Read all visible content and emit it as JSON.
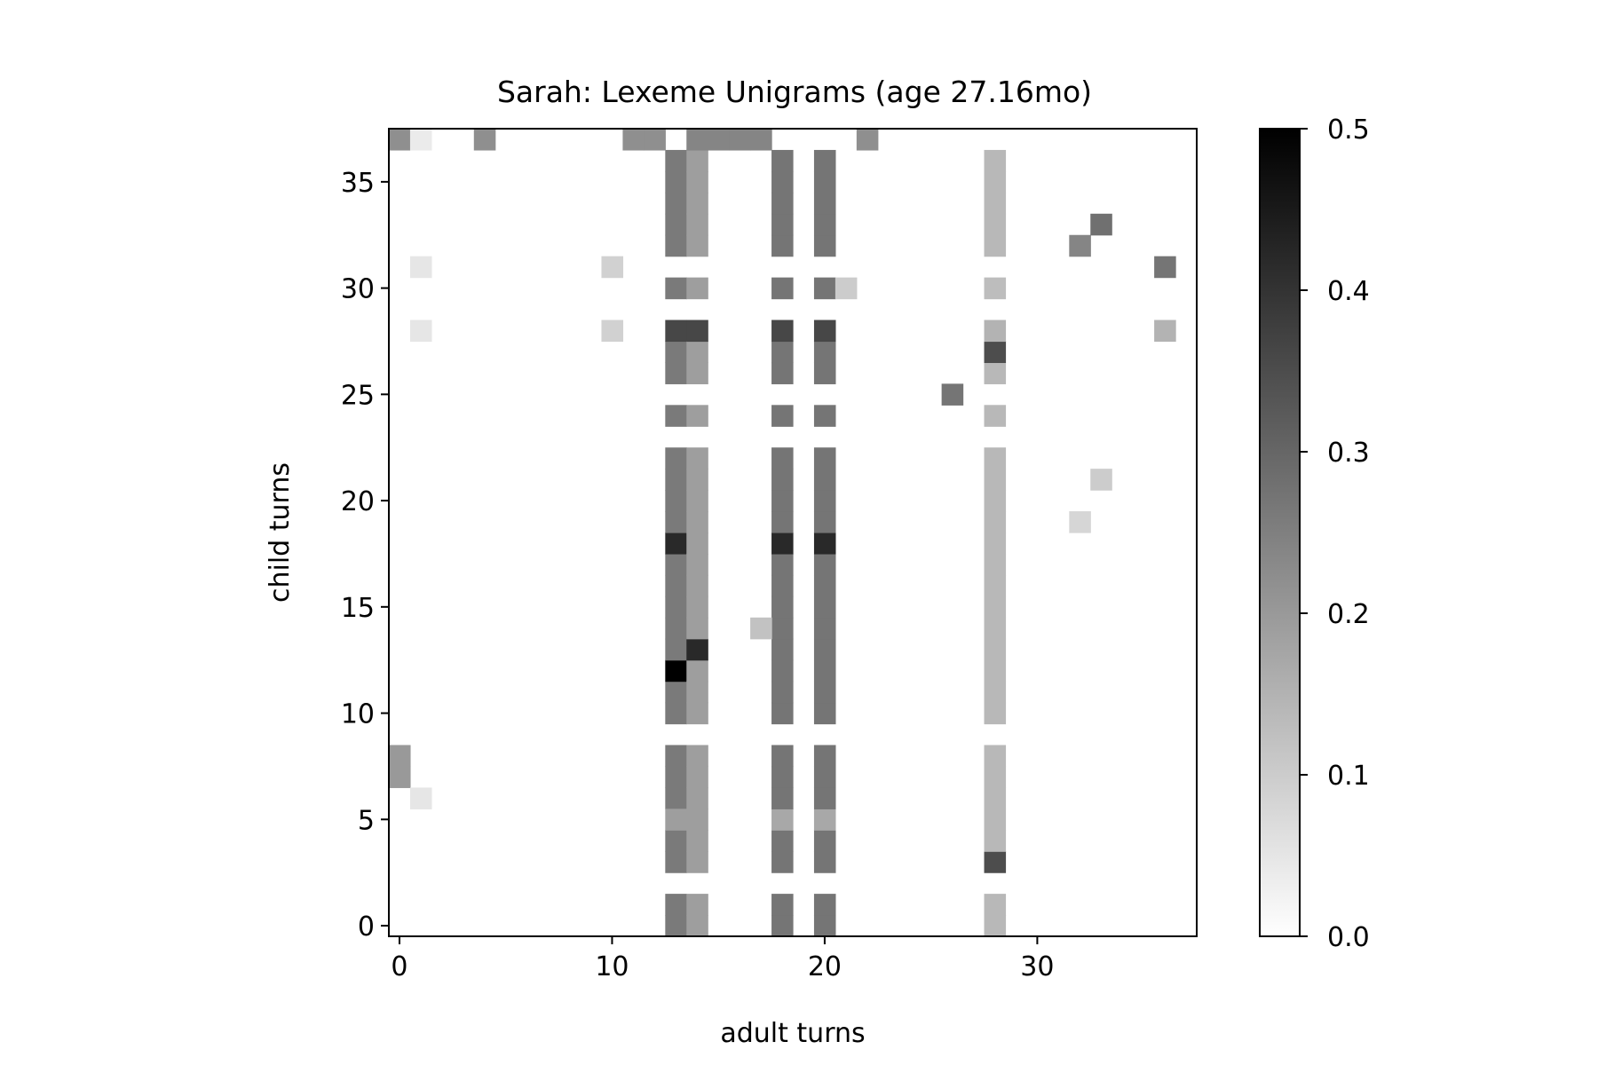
{
  "chart_data": {
    "type": "heatmap",
    "title": "Sarah: Lexeme Unigrams (age 27.16mo)",
    "xlabel": "adult turns",
    "ylabel": "child turns",
    "n_cols": 38,
    "n_rows": 38,
    "xlim": [
      -0.5,
      37.5
    ],
    "ylim": [
      -0.5,
      37.5
    ],
    "xticks": [
      0,
      10,
      20,
      30
    ],
    "yticks": [
      0,
      5,
      10,
      15,
      20,
      25,
      30,
      35
    ],
    "colormap": "greys",
    "colorbar": {
      "min": 0.0,
      "max": 0.5,
      "ticks": [
        "0.0",
        "0.1",
        "0.2",
        "0.3",
        "0.4",
        "0.5"
      ]
    },
    "column_runs": [
      {
        "x": 13,
        "value": 0.26,
        "rows": [
          [
            0,
            1
          ],
          [
            3,
            4
          ],
          [
            6,
            8
          ],
          [
            10,
            22
          ],
          [
            24,
            24
          ],
          [
            26,
            28
          ],
          [
            30,
            30
          ],
          [
            32,
            36
          ]
        ]
      },
      {
        "x": 14,
        "value": 0.19,
        "rows": [
          [
            0,
            1
          ],
          [
            3,
            8
          ],
          [
            10,
            22
          ],
          [
            24,
            24
          ],
          [
            26,
            28
          ],
          [
            30,
            30
          ],
          [
            32,
            36
          ]
        ]
      },
      {
        "x": 18,
        "value": 0.27,
        "rows": [
          [
            0,
            1
          ],
          [
            3,
            8
          ],
          [
            10,
            22
          ],
          [
            24,
            24
          ],
          [
            26,
            28
          ],
          [
            30,
            30
          ],
          [
            32,
            36
          ]
        ]
      },
      {
        "x": 20,
        "value": 0.27,
        "rows": [
          [
            0,
            1
          ],
          [
            3,
            8
          ],
          [
            10,
            22
          ],
          [
            24,
            24
          ],
          [
            26,
            28
          ],
          [
            30,
            30
          ],
          [
            32,
            36
          ]
        ]
      },
      {
        "x": 28,
        "value": 0.14,
        "rows": [
          [
            0,
            1
          ],
          [
            3,
            8
          ],
          [
            10,
            22
          ],
          [
            24,
            24
          ],
          [
            26,
            28
          ],
          [
            30,
            30
          ],
          [
            32,
            36
          ]
        ]
      }
    ],
    "cells": [
      [
        0,
        37,
        0.22
      ],
      [
        1,
        37,
        0.04
      ],
      [
        4,
        37,
        0.22
      ],
      [
        11,
        37,
        0.22
      ],
      [
        12,
        37,
        0.22
      ],
      [
        14,
        37,
        0.24
      ],
      [
        15,
        37,
        0.24
      ],
      [
        16,
        37,
        0.24
      ],
      [
        17,
        37,
        0.24
      ],
      [
        22,
        37,
        0.22
      ],
      [
        13,
        28,
        0.36
      ],
      [
        14,
        28,
        0.36
      ],
      [
        18,
        28,
        0.36
      ],
      [
        20,
        28,
        0.36
      ],
      [
        13,
        18,
        0.42
      ],
      [
        18,
        18,
        0.42
      ],
      [
        20,
        18,
        0.42
      ],
      [
        13,
        12,
        0.5
      ],
      [
        14,
        13,
        0.42
      ],
      [
        13,
        5,
        0.19
      ],
      [
        18,
        5,
        0.17
      ],
      [
        20,
        5,
        0.17
      ],
      [
        28,
        27,
        0.35
      ],
      [
        28,
        3,
        0.35
      ],
      [
        28,
        28,
        0.15
      ],
      [
        28,
        24,
        0.14
      ],
      [
        28,
        30,
        0.13
      ],
      [
        0,
        7,
        0.2
      ],
      [
        0,
        8,
        0.2
      ],
      [
        1,
        6,
        0.05
      ],
      [
        1,
        28,
        0.05
      ],
      [
        1,
        31,
        0.05
      ],
      [
        10,
        28,
        0.09
      ],
      [
        10,
        31,
        0.09
      ],
      [
        17,
        14,
        0.12
      ],
      [
        21,
        30,
        0.1
      ],
      [
        26,
        25,
        0.27
      ],
      [
        32,
        19,
        0.08
      ],
      [
        33,
        21,
        0.1
      ],
      [
        32,
        32,
        0.24
      ],
      [
        33,
        33,
        0.28
      ],
      [
        36,
        31,
        0.27
      ],
      [
        36,
        28,
        0.15
      ]
    ]
  }
}
